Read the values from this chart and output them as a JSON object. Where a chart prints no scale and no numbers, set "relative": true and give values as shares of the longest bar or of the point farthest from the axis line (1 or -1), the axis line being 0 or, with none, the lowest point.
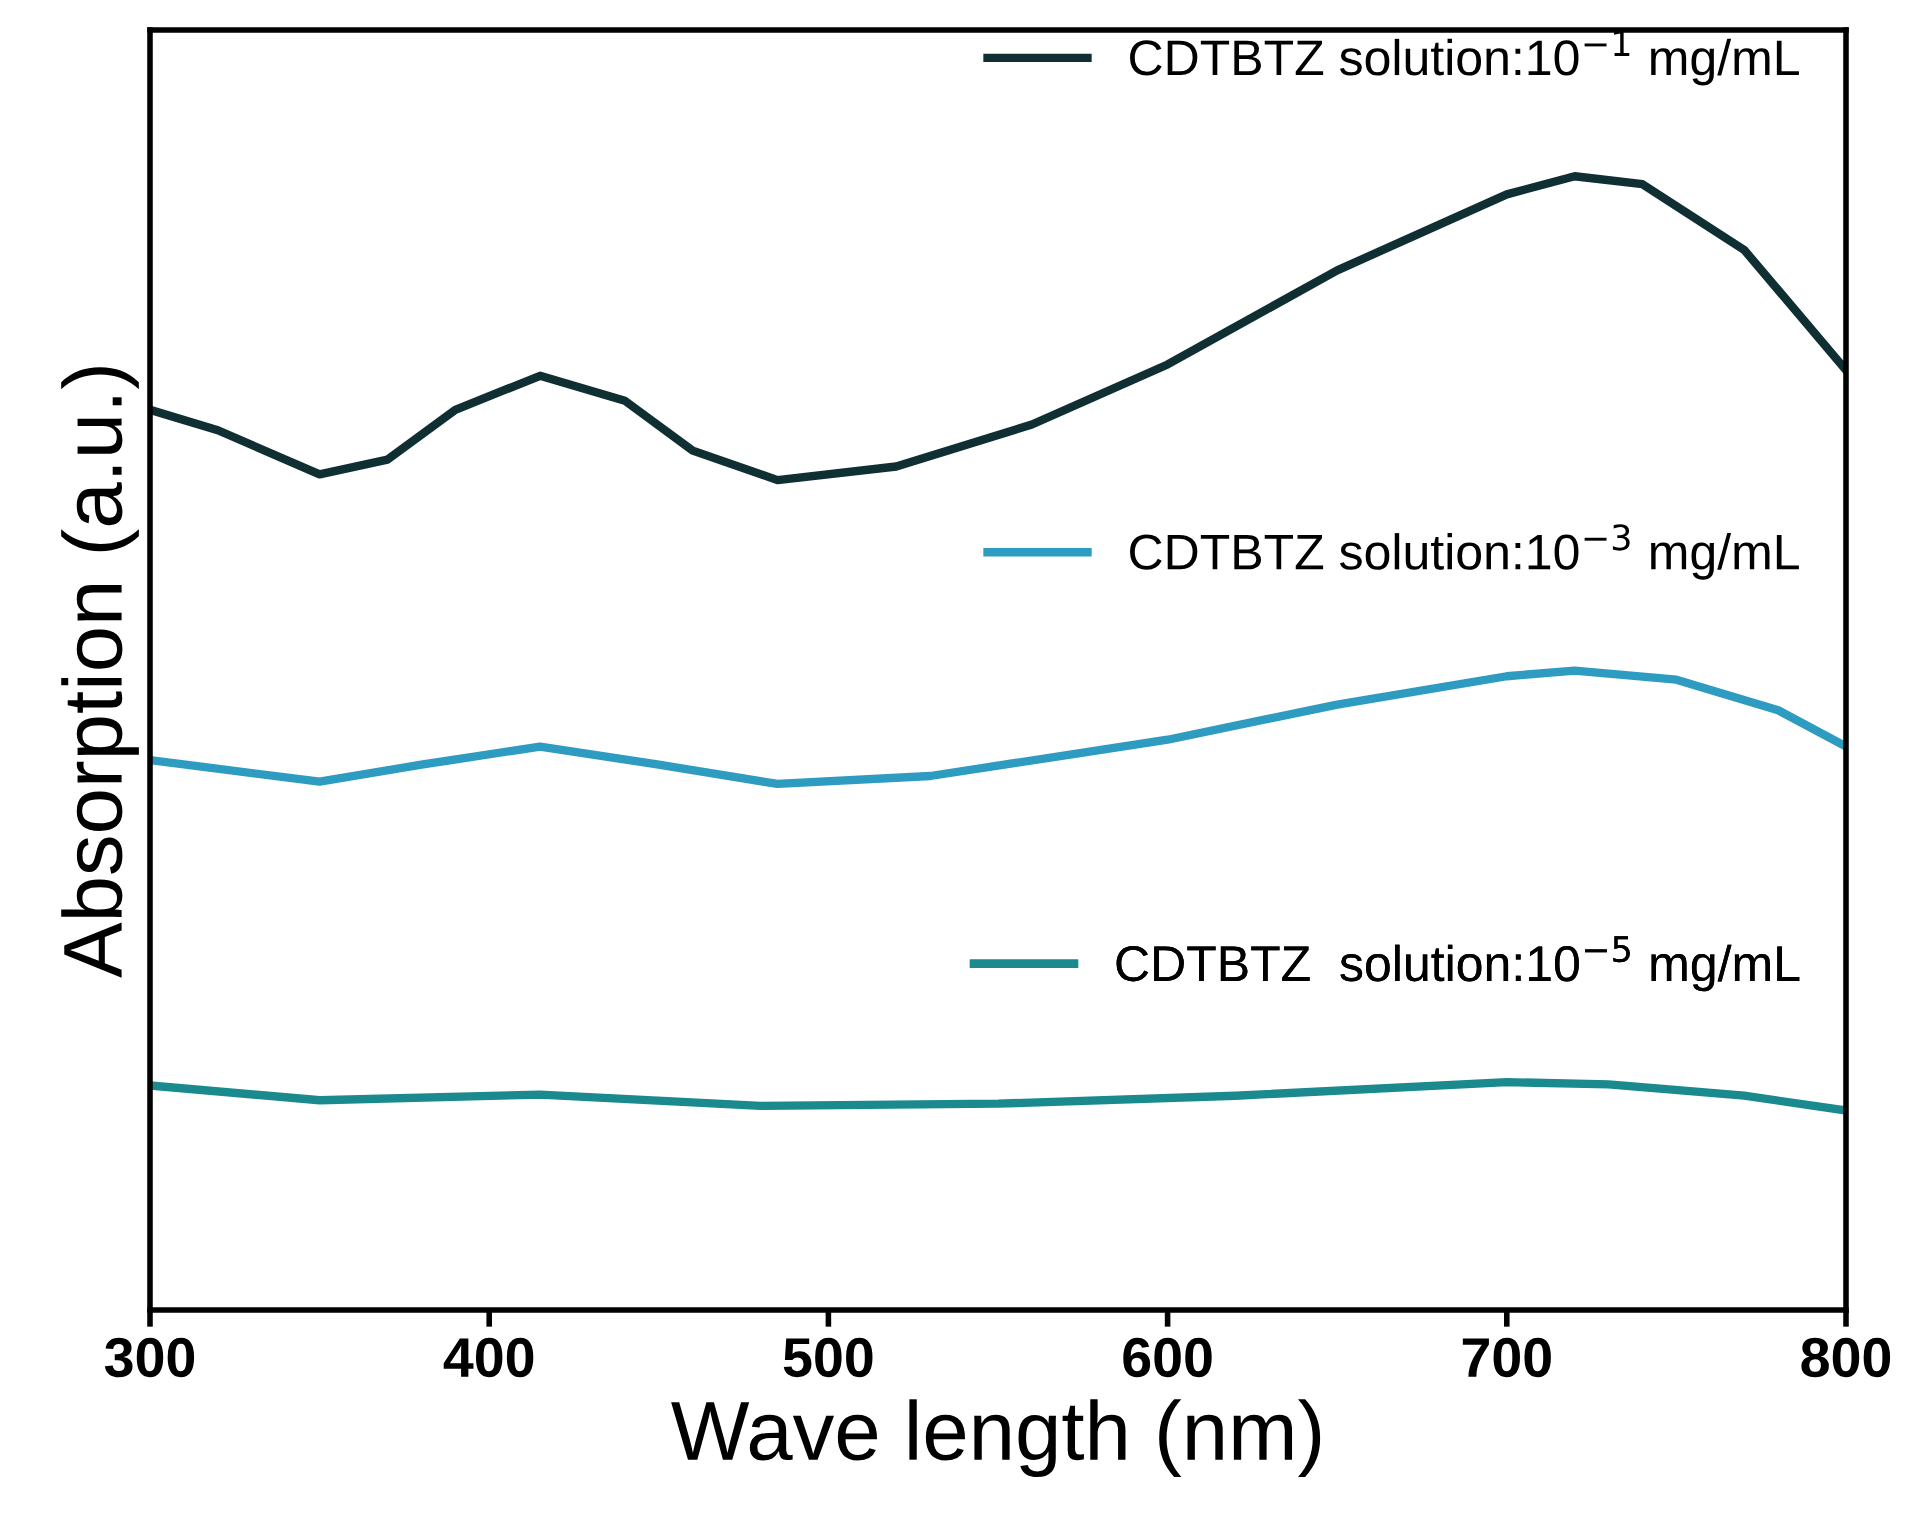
{
  "chart_data": {
    "type": "line",
    "relative": true,
    "xlabel": "Wave length (nm)",
    "ylabel": "Absorption (a.u.)",
    "xlim": [
      300,
      800
    ],
    "xticks": [
      300,
      400,
      500,
      600,
      700,
      800
    ],
    "grid": false,
    "legend": "right",
    "line_style": "solid",
    "marker": "none",
    "series": [
      {
        "name": "CDTBTZ solution:10$^{−1}$ mg/mL",
        "color": "#0f2f33",
        "x": [
          300,
          320,
          350,
          370,
          390,
          415,
          440,
          460,
          485,
          520,
          560,
          600,
          650,
          700,
          720,
          740,
          770,
          800
        ],
        "values": [
          0.794,
          0.776,
          0.737,
          0.75,
          0.794,
          0.824,
          0.802,
          0.758,
          0.732,
          0.744,
          0.781,
          0.834,
          0.917,
          0.984,
          1.0,
          0.993,
          0.935,
          0.829
        ]
      },
      {
        "name": "CDTBTZ solution:10$^{−3}$ mg/mL",
        "color": "#2e9bc0",
        "x": [
          300,
          350,
          380,
          415,
          450,
          485,
          530,
          600,
          650,
          700,
          720,
          750,
          780,
          800
        ],
        "values": [
          0.485,
          0.466,
          0.481,
          0.497,
          0.481,
          0.464,
          0.471,
          0.503,
          0.534,
          0.559,
          0.564,
          0.556,
          0.529,
          0.497
        ]
      },
      {
        "name": "CDTBTZ  solution:10$^{−5}$ mg/mL",
        "color": "#1a8a8f",
        "x": [
          300,
          350,
          415,
          480,
          550,
          620,
          700,
          730,
          770,
          800
        ],
        "values": [
          0.198,
          0.185,
          0.19,
          0.18,
          0.182,
          0.189,
          0.201,
          0.199,
          0.189,
          0.176
        ]
      }
    ]
  }
}
